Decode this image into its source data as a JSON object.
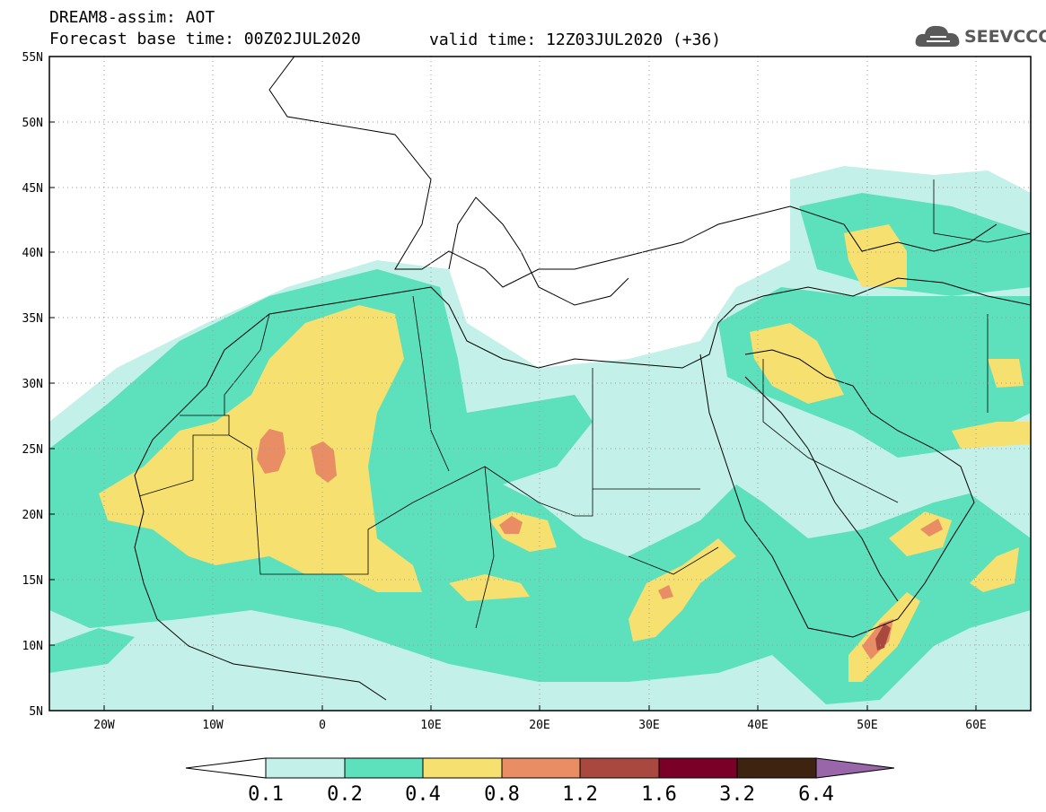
{
  "header": {
    "title": "DREAM8-assim: AOT",
    "base_time": "Forecast base time: 00Z02JUL2020",
    "valid_time": "valid time: 12Z03JUL2020 (+36)",
    "logo_text": "SEEVCCC"
  },
  "map": {
    "lon_range": [
      -25,
      65
    ],
    "lat_range": [
      5,
      55
    ],
    "lon_ticks": [
      "20W",
      "10W",
      "0",
      "10E",
      "20E",
      "30E",
      "40E",
      "50E",
      "60E"
    ],
    "lat_ticks": [
      "5N",
      "10N",
      "15N",
      "20N",
      "25N",
      "30N",
      "35N",
      "40N",
      "45N",
      "50N",
      "55N"
    ],
    "grid": "dotted"
  },
  "colorbar": {
    "labels": [
      "0.1",
      "0.2",
      "0.4",
      "0.8",
      "1.2",
      "1.6",
      "3.2",
      "6.4"
    ],
    "colors": [
      "#ffffff",
      "#c3f0e8",
      "#5de0bc",
      "#f5e070",
      "#e98d64",
      "#a9483e",
      "#7a0028",
      "#3d2310",
      "#9966aa"
    ]
  },
  "icons": {
    "logo": "cloud-icon"
  }
}
